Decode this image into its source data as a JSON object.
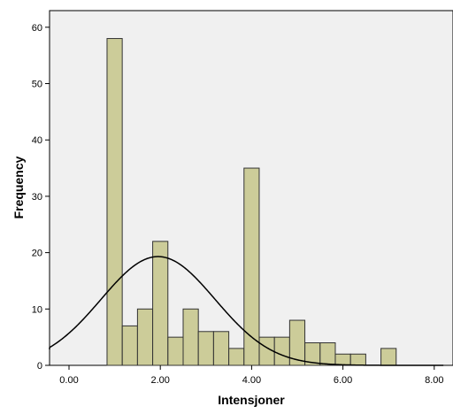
{
  "chart_data": {
    "type": "bar",
    "subtype": "histogram",
    "title": "",
    "xlabel": "Intensjoner",
    "ylabel": "Frequency",
    "xlim": [
      -0.5,
      8.2
    ],
    "ylim": [
      0,
      65
    ],
    "x_ticks": [
      0,
      2,
      4,
      6,
      8
    ],
    "x_tick_labels": [
      "0.00",
      "2.00",
      "4.00",
      "6.00",
      "8.00"
    ],
    "y_ticks": [
      0,
      10,
      20,
      30,
      40,
      50,
      60
    ],
    "y_tick_labels": [
      "0",
      "10",
      "20",
      "30",
      "40",
      "50",
      "60"
    ],
    "bin_width": 0.333,
    "bins": [
      {
        "x_start": 0.833,
        "value": 58
      },
      {
        "x_start": 1.167,
        "value": 7
      },
      {
        "x_start": 1.5,
        "value": 10
      },
      {
        "x_start": 1.833,
        "value": 22
      },
      {
        "x_start": 2.167,
        "value": 5
      },
      {
        "x_start": 2.5,
        "value": 10
      },
      {
        "x_start": 2.833,
        "value": 6
      },
      {
        "x_start": 3.167,
        "value": 6
      },
      {
        "x_start": 3.5,
        "value": 3
      },
      {
        "x_start": 3.833,
        "value": 35
      },
      {
        "x_start": 4.167,
        "value": 5
      },
      {
        "x_start": 4.5,
        "value": 5
      },
      {
        "x_start": 4.833,
        "value": 8
      },
      {
        "x_start": 5.167,
        "value": 4
      },
      {
        "x_start": 5.5,
        "value": 4
      },
      {
        "x_start": 5.833,
        "value": 2
      },
      {
        "x_start": 6.167,
        "value": 2
      },
      {
        "x_start": 6.833,
        "value": 3
      }
    ],
    "normal_curve": {
      "mean": 1.95,
      "sd": 1.25,
      "peak": 19.3
    },
    "grid": false,
    "legend": "none",
    "colors": {
      "bar_fill": "#cccc99",
      "bar_stroke": "#333333",
      "plot_background": "#f0f0f0",
      "curve": "#000000"
    }
  }
}
